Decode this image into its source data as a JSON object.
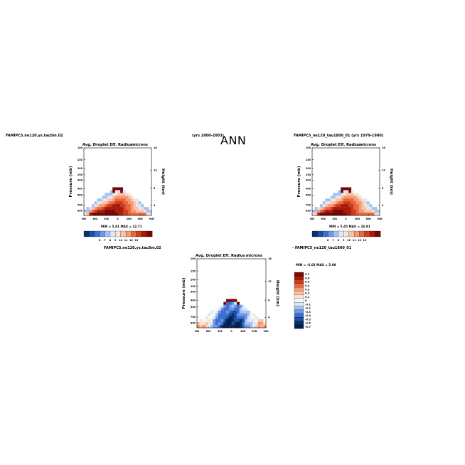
{
  "page": {
    "title": "ANN",
    "years_case1": "(yrs 2000-2003)",
    "case1": "FAMIPC5.ne120.ys.tau5m.02",
    "case2": "FAMIPC5_ne120_tau1800_01 (yrs 1979-1980)",
    "diff_left": "FAMIPC5.ne120.ys.tau5m.02",
    "diff_right": "- FAMIPC5_ne120_tau1800_01"
  },
  "colors": {
    "blue_dark": "#08306b",
    "blue_mid": "#4a7ad8",
    "white": "#f7f7f7",
    "orange": "#f7a680",
    "red_dark": "#8b0a0a"
  },
  "chart_data": [
    {
      "type": "heatmap",
      "title": "Avg. Droplet Eff. Radius",
      "units": "microns",
      "ylabel": "Pressure (mb)",
      "y2label": "Height (km)",
      "x_ticks": [
        "90S",
        "60S",
        "30S",
        "0",
        "30N",
        "60N",
        "90N"
      ],
      "y_ticks": [
        "100",
        "150",
        "200",
        "250",
        "300",
        "400",
        "500",
        "700",
        "850"
      ],
      "y2_ticks": [
        "16",
        "12",
        "8",
        "4"
      ],
      "stats": "MIN =    5.81   MAX =   22.71",
      "colorbar": [
        "6",
        "7",
        "8",
        "9",
        "10",
        "11",
        "12",
        "13"
      ],
      "grid": false
    },
    {
      "type": "heatmap",
      "title": "Avg. Droplet Eff. Radius",
      "units": "microns",
      "ylabel": "Pressure (mb)",
      "y2label": "Height (km)",
      "x_ticks": [
        "90S",
        "60S",
        "30S",
        "0",
        "30N",
        "60N",
        "90N"
      ],
      "y_ticks": [
        "100",
        "150",
        "200",
        "250",
        "300",
        "400",
        "500",
        "700",
        "850"
      ],
      "y2_ticks": [
        "16",
        "12",
        "8",
        "4"
      ],
      "stats": "MIN =    5.45   MAX =   26.91",
      "colorbar": [
        "6",
        "7",
        "8",
        "9",
        "10",
        "11",
        "12",
        "13"
      ],
      "grid": false
    },
    {
      "type": "heatmap",
      "title": "Avg. Droplet Eff. Radius",
      "units": "microns",
      "ylabel": "Pressure (mb)",
      "y2label": "Height (km)",
      "x_ticks": [
        "90S",
        "60S",
        "30S",
        "0",
        "30N",
        "60N",
        "90N"
      ],
      "y_ticks": [
        "100",
        "150",
        "200",
        "250",
        "300",
        "400",
        "500",
        "700",
        "850"
      ],
      "y2_ticks": [
        "16",
        "12",
        "8",
        "4"
      ],
      "stats": "MIN =   -6.02   MAX =    5.98",
      "colorbar": [
        "0.7",
        "0.6",
        "0.5",
        "0.4",
        "0.3",
        "0.2",
        "0.1",
        "0",
        "-0.1",
        "-0.2",
        "-0.3",
        "-0.4",
        "-0.5",
        "-0.6",
        "-0.7"
      ],
      "grid": false
    }
  ]
}
